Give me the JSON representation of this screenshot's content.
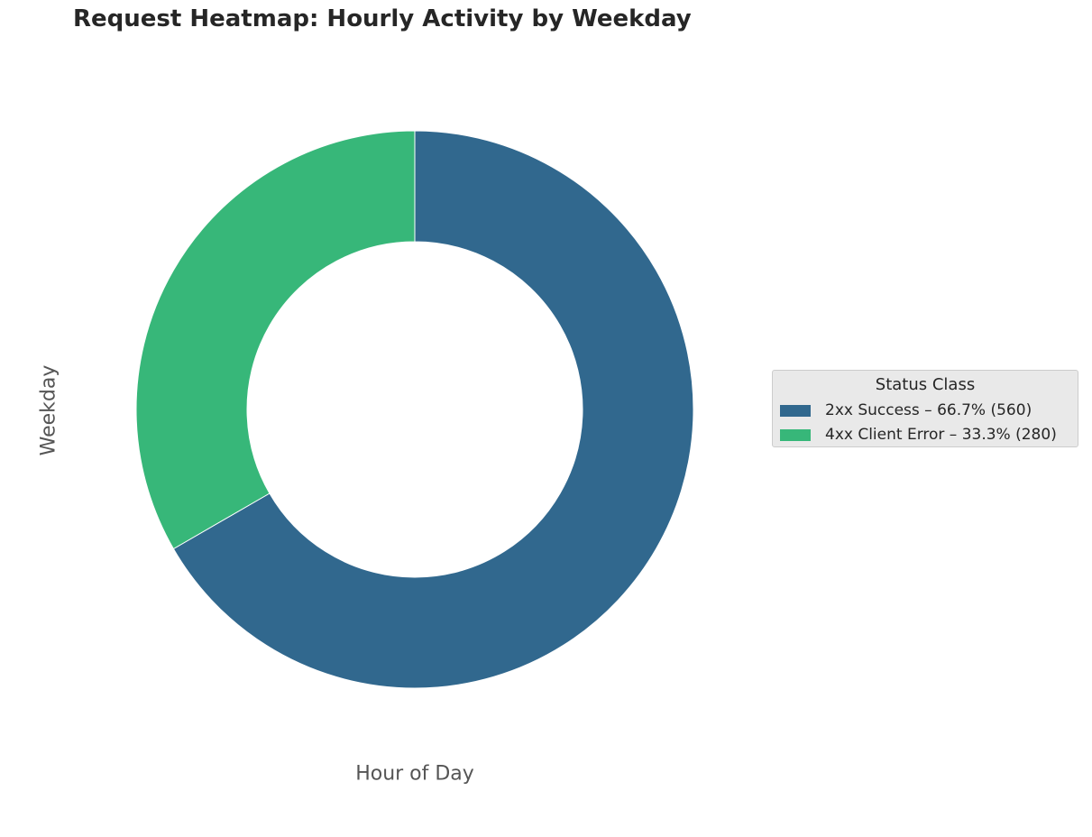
{
  "chart_data": {
    "type": "pie",
    "variant": "donut",
    "title": "Request Heatmap: Hourly Activity by Weekday",
    "xlabel": "Hour of Day",
    "ylabel": "Weekday",
    "categories": [
      "2xx Success",
      "4xx Client Error"
    ],
    "values": [
      560,
      280
    ],
    "percentages": [
      66.7,
      33.3
    ],
    "colors": [
      "#31688e",
      "#37b779"
    ],
    "start_angle_deg": 90,
    "direction": "clockwise",
    "legend": {
      "title": "Status Class",
      "placement": "right",
      "entries": [
        "2xx Success – 66.7% (560)",
        "4xx Client Error – 33.3% (280)"
      ]
    }
  }
}
